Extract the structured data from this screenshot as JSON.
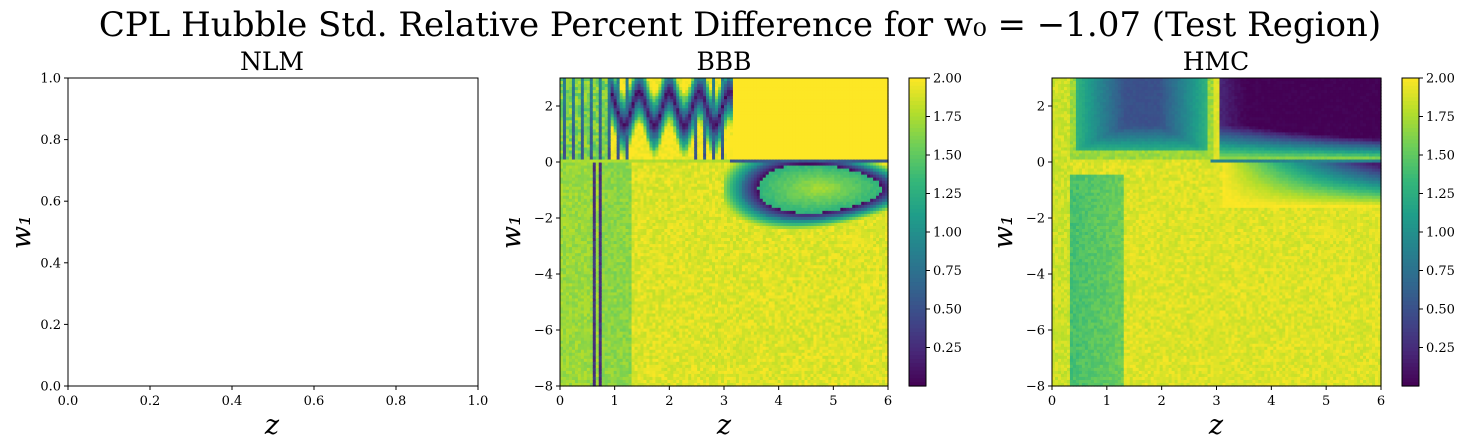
{
  "title": "CPL Hubble Std. Relative Percent Difference for w₀ = −1.07 (Test Region)",
  "colormap": [
    "#440154",
    "#482878",
    "#3e4989",
    "#31688e",
    "#26828e",
    "#1f9e89",
    "#35b779",
    "#6ece58",
    "#b5de2b",
    "#fde725"
  ],
  "chart_data": [
    {
      "type": "heatmap",
      "title": "NLM",
      "xlabel": "z",
      "ylabel": "w₁",
      "xlim": [
        0,
        1
      ],
      "ylim": [
        0,
        1
      ],
      "xticks": [
        "0.0",
        "0.2",
        "0.4",
        "0.6",
        "0.8",
        "1.0"
      ],
      "yticks": [
        "0.0",
        "0.2",
        "0.4",
        "0.6",
        "0.8",
        "1.0"
      ],
      "empty": true
    },
    {
      "type": "heatmap",
      "title": "BBB",
      "xlabel": "z",
      "ylabel": "w₁",
      "xlim": [
        0,
        6
      ],
      "ylim": [
        -8,
        3
      ],
      "xticks": [
        "0",
        "1",
        "2",
        "3",
        "4",
        "5",
        "6"
      ],
      "yticks": [
        "−8",
        "−6",
        "−4",
        "−2",
        "0",
        "2"
      ],
      "colorbar": {
        "min": 0.0,
        "max": 2.0,
        "ticks": [
          "0.25",
          "0.50",
          "0.75",
          "1.00",
          "1.25",
          "1.50",
          "1.75",
          "2.00"
        ]
      }
    },
    {
      "type": "heatmap",
      "title": "HMC",
      "xlabel": "z",
      "ylabel": "w₁",
      "xlim": [
        0,
        6
      ],
      "ylim": [
        -8,
        3
      ],
      "xticks": [
        "0",
        "1",
        "2",
        "3",
        "4",
        "5",
        "6"
      ],
      "yticks": [
        "−8",
        "−6",
        "−4",
        "−2",
        "0",
        "2"
      ],
      "colorbar": {
        "min": 0.0,
        "max": 2.0,
        "ticks": [
          "0.25",
          "0.50",
          "0.75",
          "1.00",
          "1.25",
          "1.50",
          "1.75",
          "2.00"
        ]
      }
    }
  ]
}
